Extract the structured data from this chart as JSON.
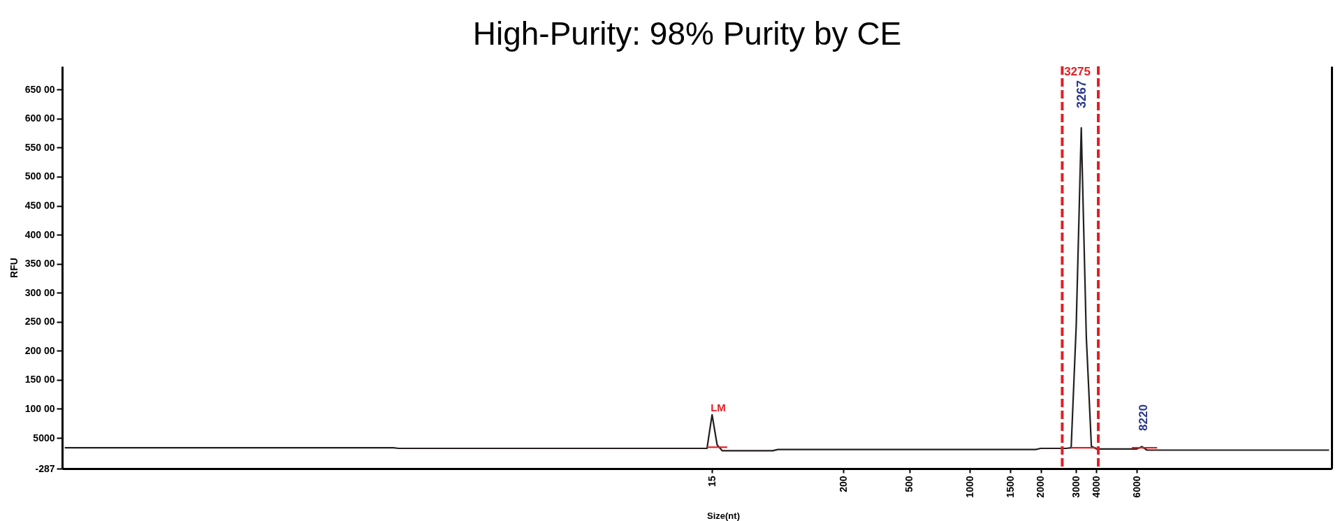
{
  "chart_data": {
    "type": "line",
    "title": "High-Purity: 98% Purity by CE",
    "xlabel": "Size(nt)",
    "ylabel": "RFU",
    "categories": [
      null,
      null,
      null,
      null,
      null,
      null,
      null,
      null,
      null,
      null,
      null,
      null,
      null,
      null,
      null,
      null,
      null,
      null,
      null,
      null,
      null,
      null,
      null,
      null,
      null,
      null,
      null,
      null,
      null,
      null,
      null,
      null,
      null,
      null,
      null,
      null,
      null,
      null,
      null,
      null,
      null,
      null,
      null,
      null,
      null,
      null,
      null,
      null,
      null,
      null,
      null,
      null,
      null,
      null,
      null,
      null,
      null,
      null,
      null,
      null,
      null,
      null,
      null,
      null,
      null,
      null,
      null,
      null,
      null,
      null,
      null,
      null,
      null,
      null,
      null,
      null,
      null,
      null,
      null,
      null,
      null,
      null,
      null,
      null,
      null,
      null,
      null,
      null,
      null,
      null,
      null,
      null,
      null,
      null,
      null,
      null,
      null,
      null,
      null,
      null,
      null,
      null,
      null,
      null,
      null,
      null,
      null,
      null,
      null,
      null,
      null,
      null,
      null,
      null,
      null,
      null,
      null,
      null,
      null,
      null,
      null,
      null,
      null,
      null,
      null,
      null,
      null,
      null,
      "15",
      null,
      null,
      null,
      null,
      null,
      null,
      null,
      null,
      null,
      null,
      null,
      null,
      null,
      null,
      null,
      null,
      null,
      null,
      null,
      null,
      null,
      null,
      null,
      null,
      null,
      "200",
      null,
      null,
      null,
      null,
      null,
      null,
      null,
      null,
      null,
      null,
      null,
      null,
      "500",
      null,
      null,
      null,
      null,
      null,
      null,
      null,
      null,
      null,
      null,
      null,
      "1000",
      null,
      null,
      null,
      null,
      null,
      null,
      null,
      "1500",
      null,
      null,
      null,
      null,
      null,
      "2000",
      null,
      null,
      null,
      null,
      null,
      null,
      "3000",
      null,
      null,
      null,
      "4000",
      null,
      null,
      null,
      null,
      null,
      null,
      null,
      "6000",
      null,
      null,
      null,
      null,
      null,
      null,
      null,
      null,
      null,
      null,
      null,
      null,
      null,
      null,
      null,
      null,
      null,
      null,
      null,
      null,
      null,
      null,
      null,
      null,
      null,
      null,
      null,
      null,
      null,
      null,
      null,
      null,
      null,
      null,
      null,
      null,
      null,
      null
    ],
    "ylim": [
      -287,
      69000
    ],
    "yticks": [
      -287,
      5000,
      {
        "value": 10000,
        "label": "100 00"
      },
      {
        "value": 15000,
        "label": "150 00"
      },
      {
        "value": 20000,
        "label": "200 00"
      },
      {
        "value": 25000,
        "label": "250 00"
      },
      {
        "value": 30000,
        "label": "300 00"
      },
      {
        "value": 35000,
        "label": "350 00"
      },
      {
        "value": 40000,
        "label": "400 00"
      },
      {
        "value": 45000,
        "label": "450 00"
      },
      {
        "value": 50000,
        "label": "500 00"
      },
      {
        "value": 55000,
        "label": "550 00"
      },
      {
        "value": 60000,
        "label": "600 00"
      },
      {
        "value": 65000,
        "label": "650 00"
      }
    ],
    "series": [
      {
        "color": "#231f20",
        "values": [
          3300,
          3300,
          3300,
          3300,
          3300,
          3300,
          3300,
          3300,
          3300,
          3300,
          3300,
          3300,
          3300,
          3300,
          3300,
          3300,
          3300,
          3300,
          3300,
          3300,
          3300,
          3300,
          3300,
          3300,
          3300,
          3300,
          3300,
          3300,
          3300,
          3300,
          3300,
          3300,
          3300,
          3300,
          3300,
          3300,
          3300,
          3300,
          3300,
          3300,
          3300,
          3300,
          3300,
          3300,
          3300,
          3300,
          3300,
          3300,
          3300,
          3300,
          3300,
          3300,
          3300,
          3300,
          3300,
          3300,
          3300,
          3300,
          3300,
          3300,
          3300,
          3300,
          3300,
          3300,
          3300,
          3300,
          3200,
          3200,
          3200,
          3200,
          3200,
          3200,
          3200,
          3200,
          3200,
          3200,
          3200,
          3200,
          3200,
          3200,
          3200,
          3200,
          3200,
          3200,
          3200,
          3200,
          3200,
          3200,
          3200,
          3200,
          3200,
          3200,
          3200,
          3200,
          3200,
          3200,
          3200,
          3200,
          3200,
          3200,
          3200,
          3200,
          3200,
          3200,
          3200,
          3200,
          3200,
          3200,
          3200,
          3200,
          3200,
          3200,
          3200,
          3200,
          3200,
          3200,
          3200,
          3200,
          3200,
          3200,
          3200,
          3200,
          3200,
          3200,
          3200,
          3200,
          3200,
          3200,
          9000,
          3800,
          2800,
          2800,
          2800,
          2800,
          2800,
          2800,
          2800,
          2800,
          2800,
          2800,
          2800,
          3000,
          3000,
          3000,
          3000,
          3000,
          3000,
          3000,
          3000,
          3000,
          3000,
          3000,
          3000,
          3000,
          3000,
          3000,
          3000,
          3000,
          3000,
          3000,
          3000,
          3000,
          3000,
          3000,
          3000,
          3000,
          3000,
          3000,
          3000,
          3000,
          3000,
          3000,
          3000,
          3000,
          3000,
          3000,
          3000,
          3000,
          3000,
          3000,
          3000,
          3000,
          3000,
          3000,
          3000,
          3000,
          3000,
          3000,
          3000,
          3000,
          3000,
          3000,
          3000,
          3200,
          3200,
          3200,
          3200,
          3200,
          3200,
          3300,
          24300,
          58400,
          22300,
          3600,
          3100,
          3100,
          3100,
          3100,
          3100,
          3100,
          3100,
          3100,
          3100,
          3500,
          2900,
          2900,
          2900,
          2900,
          2900,
          2900,
          2900,
          2900,
          2900,
          2900,
          2900,
          2900,
          2900,
          2900,
          2900,
          2900,
          2900,
          2900,
          2900,
          2900,
          2900,
          2900,
          2900,
          2900,
          2900,
          2900,
          2900,
          2900,
          2900,
          2900,
          2900,
          2900,
          2900,
          2900,
          2900,
          2900,
          2900
        ]
      },
      {
        "color": "#e31e24",
        "values": [
          null,
          null,
          null,
          null,
          null,
          null,
          null,
          null,
          null,
          null,
          null,
          null,
          null,
          null,
          null,
          null,
          null,
          null,
          null,
          null,
          null,
          null,
          null,
          null,
          null,
          null,
          null,
          null,
          null,
          null,
          null,
          null,
          null,
          null,
          null,
          null,
          null,
          null,
          null,
          null,
          null,
          null,
          null,
          null,
          null,
          null,
          null,
          null,
          null,
          null,
          null,
          null,
          null,
          null,
          null,
          null,
          null,
          null,
          null,
          null,
          null,
          null,
          null,
          null,
          null,
          null,
          null,
          null,
          null,
          null,
          null,
          null,
          null,
          null,
          null,
          null,
          null,
          null,
          null,
          null,
          null,
          null,
          null,
          null,
          null,
          null,
          null,
          null,
          null,
          null,
          null,
          null,
          null,
          null,
          null,
          null,
          null,
          null,
          null,
          null,
          null,
          null,
          null,
          null,
          null,
          null,
          null,
          null,
          null,
          null,
          null,
          null,
          null,
          null,
          null,
          null,
          null,
          null,
          null,
          null,
          null,
          null,
          null,
          null,
          null,
          null,
          null,
          3400,
          3400,
          3400,
          3400,
          3400,
          null,
          null,
          null,
          null,
          null,
          null,
          null,
          null,
          null,
          null,
          null,
          null,
          null,
          null,
          null,
          null,
          null,
          null,
          null,
          null,
          null,
          null,
          null,
          null,
          null,
          null,
          null,
          null,
          null,
          null,
          null,
          null,
          null,
          null,
          null,
          null,
          null,
          null,
          null,
          null,
          null,
          null,
          null,
          null,
          null,
          null,
          null,
          null,
          null,
          null,
          null,
          null,
          null,
          null,
          null,
          null,
          null,
          null,
          null,
          null,
          null,
          null,
          null,
          null,
          null,
          null,
          null,
          3300,
          3300,
          3300,
          3300,
          3300,
          3300,
          null,
          null,
          null,
          null,
          null,
          null,
          3300,
          3300,
          3300,
          3300,
          3300,
          3300,
          null,
          null,
          null,
          null,
          null,
          null,
          null,
          null,
          null,
          null,
          null,
          null,
          null,
          null,
          null,
          null,
          null,
          null,
          null,
          null,
          null,
          null,
          null,
          null,
          null,
          null,
          null,
          null,
          null,
          null,
          null,
          null,
          null,
          null
        ]
      }
    ],
    "annotations": [
      "LM",
      "3275",
      "3267",
      "8220"
    ]
  }
}
